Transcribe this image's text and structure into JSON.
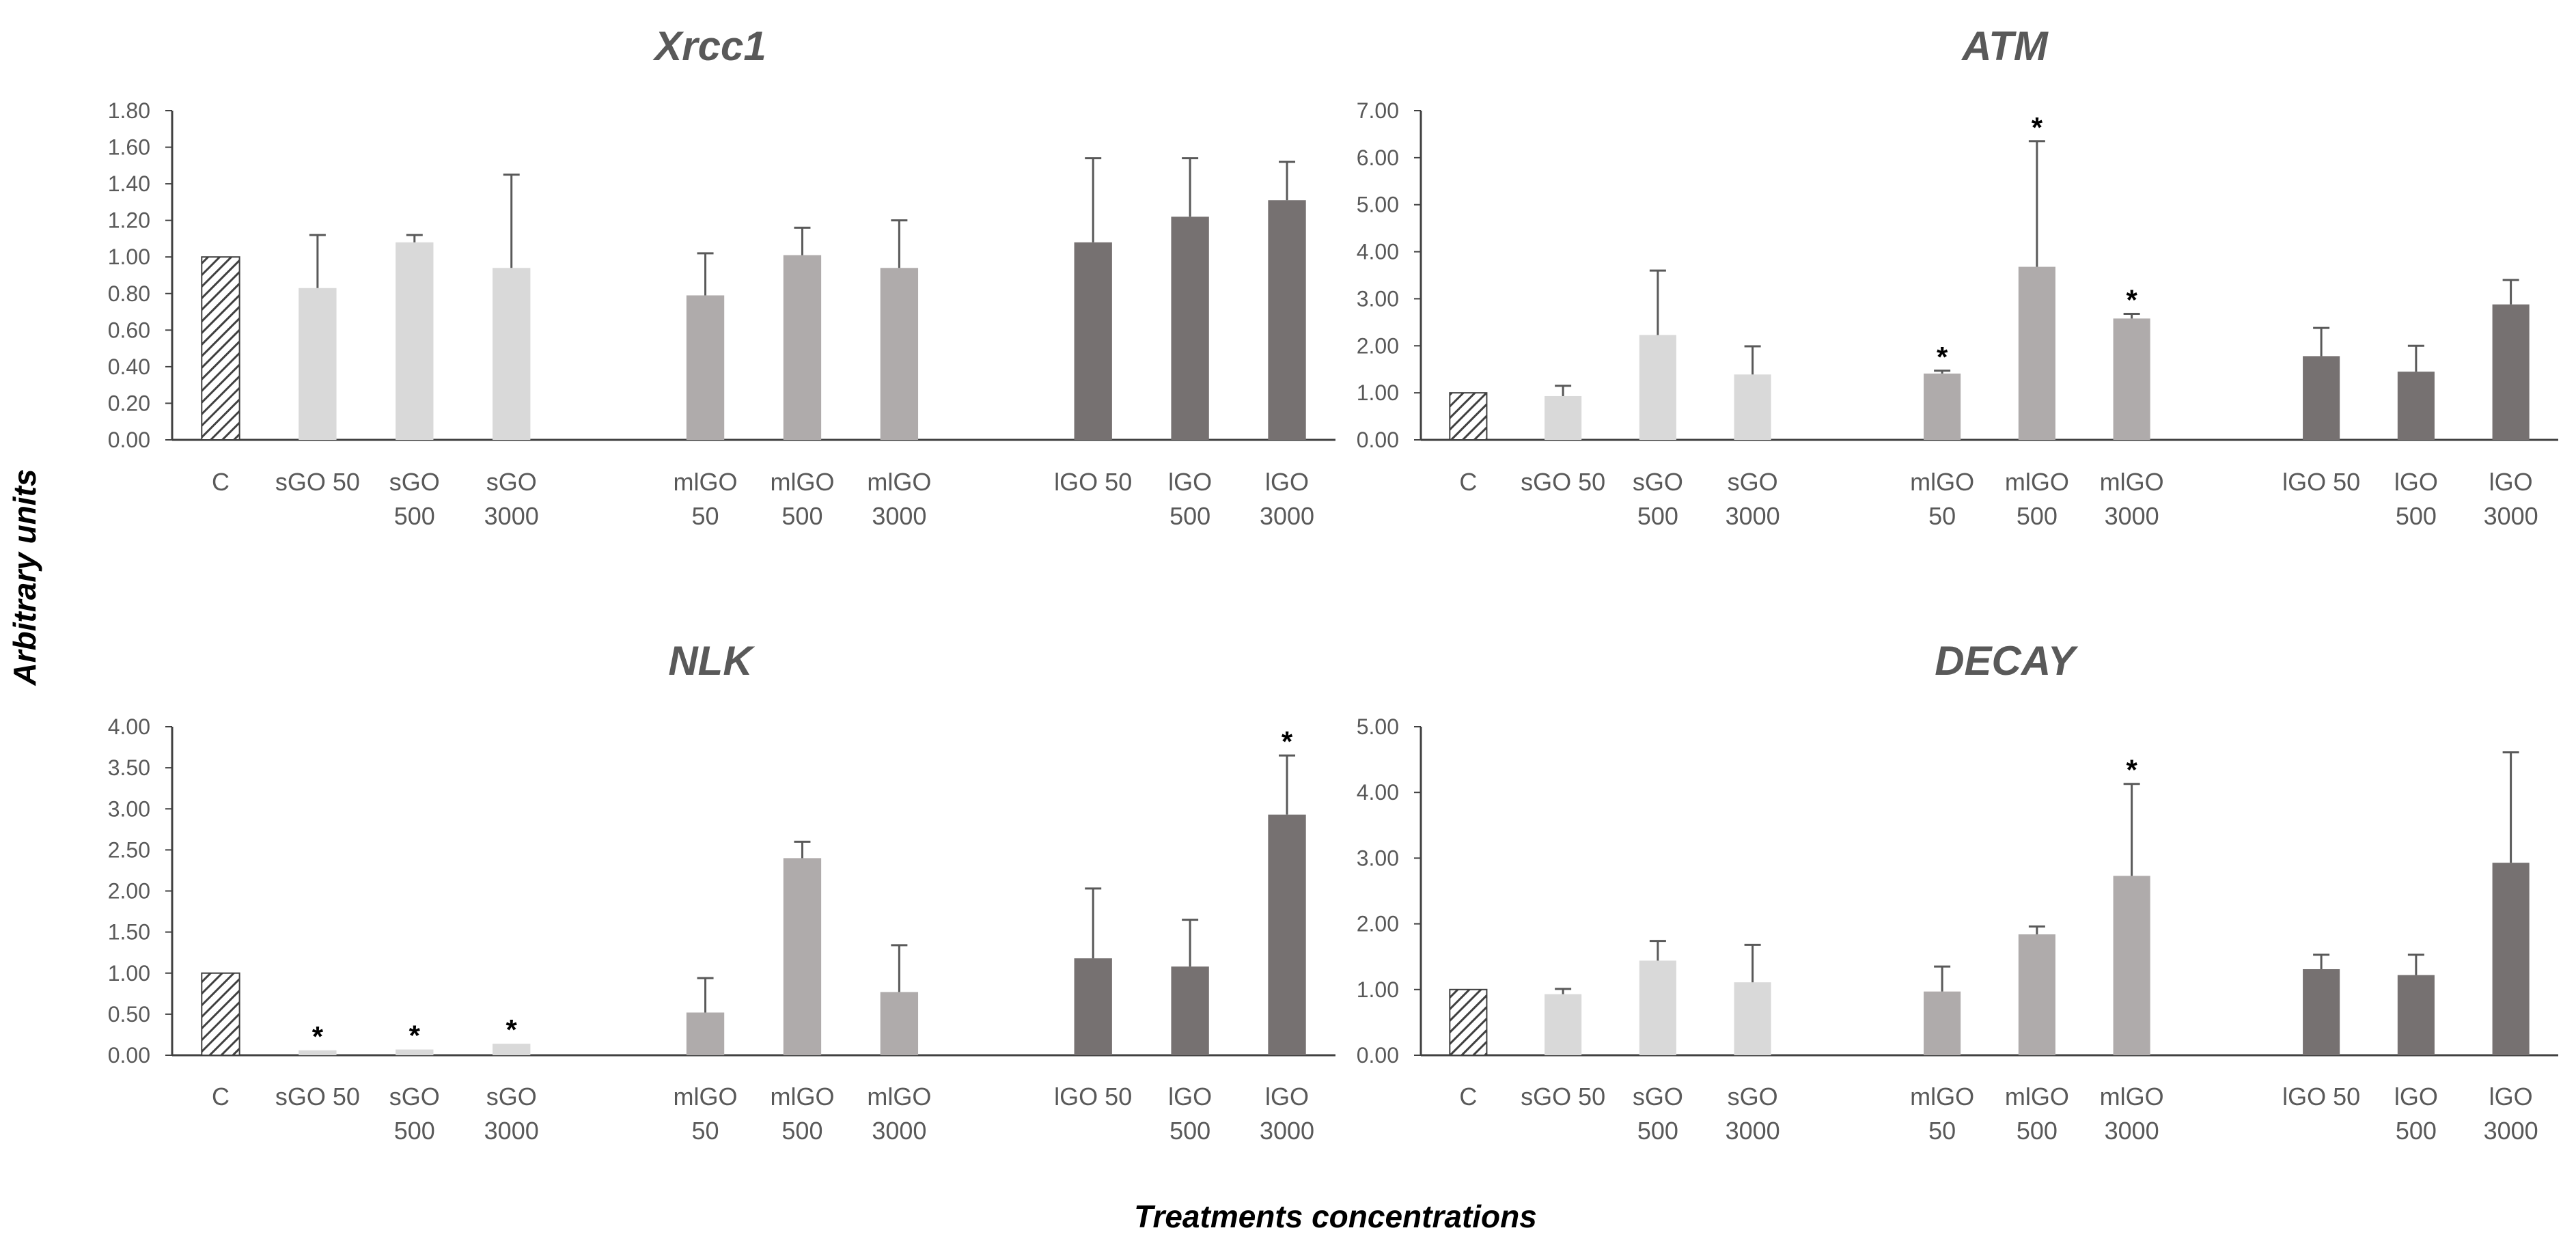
{
  "figure": {
    "ylabel": "Arbitrary units",
    "xlabel": "Treatments concentrations"
  },
  "groups": [
    {
      "name": "control",
      "color": "#6f6f6f",
      "pattern": "hatched"
    },
    {
      "name": "sGO",
      "color": "#d9d9d9"
    },
    {
      "name": "mlGO",
      "color": "#afabab"
    },
    {
      "name": "lGO",
      "color": "#767171"
    }
  ],
  "chart_data": [
    {
      "type": "bar",
      "title": "Xrcc1",
      "categories": [
        [
          "C"
        ],
        [
          "sGO 50"
        ],
        [
          "sGO",
          "500"
        ],
        [
          "sGO",
          "3000"
        ],
        [
          "mlGO",
          "50"
        ],
        [
          "mlGO",
          "500"
        ],
        [
          "mlGO",
          "3000"
        ],
        [
          "lGO 50"
        ],
        [
          "lGO",
          "500"
        ],
        [
          "lGO",
          "3000"
        ]
      ],
      "category_group": [
        "control",
        "sGO",
        "sGO",
        "sGO",
        "mlGO",
        "mlGO",
        "mlGO",
        "lGO",
        "lGO",
        "lGO"
      ],
      "values": [
        1.0,
        0.83,
        1.08,
        0.94,
        0.79,
        1.01,
        0.94,
        1.08,
        1.22,
        1.31
      ],
      "errors": [
        0.0,
        0.29,
        0.04,
        0.51,
        0.23,
        0.15,
        0.26,
        0.46,
        0.32,
        0.21
      ],
      "significant": [
        false,
        false,
        false,
        false,
        false,
        false,
        false,
        false,
        false,
        false
      ],
      "ylim": [
        0,
        1.8
      ],
      "yticks": [
        "0.00",
        "0.20",
        "0.40",
        "0.60",
        "0.80",
        "1.00",
        "1.20",
        "1.40",
        "1.60",
        "1.80"
      ]
    },
    {
      "type": "bar",
      "title": "ATM",
      "categories": [
        [
          "C"
        ],
        [
          "sGO 50"
        ],
        [
          "sGO",
          "500"
        ],
        [
          "sGO",
          "3000"
        ],
        [
          "mlGO",
          "50"
        ],
        [
          "mlGO",
          "500"
        ],
        [
          "mlGO",
          "3000"
        ],
        [
          "lGO 50"
        ],
        [
          "lGO",
          "500"
        ],
        [
          "lGO",
          "3000"
        ]
      ],
      "category_group": [
        "control",
        "sGO",
        "sGO",
        "sGO",
        "mlGO",
        "mlGO",
        "mlGO",
        "lGO",
        "lGO",
        "lGO"
      ],
      "values": [
        1.0,
        0.93,
        2.23,
        1.39,
        1.41,
        3.68,
        2.58,
        1.78,
        1.45,
        2.88
      ],
      "errors": [
        0.0,
        0.22,
        1.37,
        0.6,
        0.06,
        2.67,
        0.1,
        0.6,
        0.55,
        0.52
      ],
      "significant": [
        false,
        false,
        false,
        false,
        true,
        true,
        true,
        false,
        false,
        false
      ],
      "ylim": [
        0,
        7
      ],
      "yticks": [
        "0.00",
        "1.00",
        "2.00",
        "3.00",
        "4.00",
        "5.00",
        "6.00",
        "7.00"
      ]
    },
    {
      "type": "bar",
      "title": "NLK",
      "categories": [
        [
          "C"
        ],
        [
          "sGO 50"
        ],
        [
          "sGO",
          "500"
        ],
        [
          "sGO",
          "3000"
        ],
        [
          "mlGO",
          "50"
        ],
        [
          "mlGO",
          "500"
        ],
        [
          "mlGO",
          "3000"
        ],
        [
          "lGO 50"
        ],
        [
          "lGO",
          "500"
        ],
        [
          "lGO",
          "3000"
        ]
      ],
      "category_group": [
        "control",
        "sGO",
        "sGO",
        "sGO",
        "mlGO",
        "mlGO",
        "mlGO",
        "lGO",
        "lGO",
        "lGO"
      ],
      "values": [
        1.0,
        0.06,
        0.07,
        0.14,
        0.52,
        2.4,
        0.77,
        1.18,
        1.08,
        2.93
      ],
      "errors": [
        0.0,
        0.0,
        0.0,
        0.0,
        0.42,
        0.2,
        0.57,
        0.85,
        0.57,
        0.72
      ],
      "significant": [
        false,
        true,
        true,
        true,
        false,
        false,
        false,
        false,
        false,
        true
      ],
      "ylim": [
        0,
        4
      ],
      "yticks": [
        "0.00",
        "0.50",
        "1.00",
        "1.50",
        "2.00",
        "2.50",
        "3.00",
        "3.50",
        "4.00"
      ]
    },
    {
      "type": "bar",
      "title": "DECAY",
      "categories": [
        [
          "C"
        ],
        [
          "sGO 50"
        ],
        [
          "sGO",
          "500"
        ],
        [
          "sGO",
          "3000"
        ],
        [
          "mlGO",
          "50"
        ],
        [
          "mlGO",
          "500"
        ],
        [
          "mlGO",
          "3000"
        ],
        [
          "lGO 50"
        ],
        [
          "lGO",
          "500"
        ],
        [
          "lGO",
          "3000"
        ]
      ],
      "category_group": [
        "control",
        "sGO",
        "sGO",
        "sGO",
        "mlGO",
        "mlGO",
        "mlGO",
        "lGO",
        "lGO",
        "lGO"
      ],
      "values": [
        1.0,
        0.93,
        1.44,
        1.11,
        0.97,
        1.84,
        2.73,
        1.31,
        1.22,
        2.93
      ],
      "errors": [
        0.0,
        0.08,
        0.3,
        0.57,
        0.38,
        0.12,
        1.4,
        0.22,
        0.31,
        1.68
      ],
      "significant": [
        false,
        false,
        false,
        false,
        false,
        false,
        true,
        false,
        false,
        false
      ],
      "ylim": [
        0,
        5
      ],
      "yticks": [
        "0.00",
        "1.00",
        "2.00",
        "3.00",
        "4.00",
        "5.00"
      ]
    }
  ]
}
